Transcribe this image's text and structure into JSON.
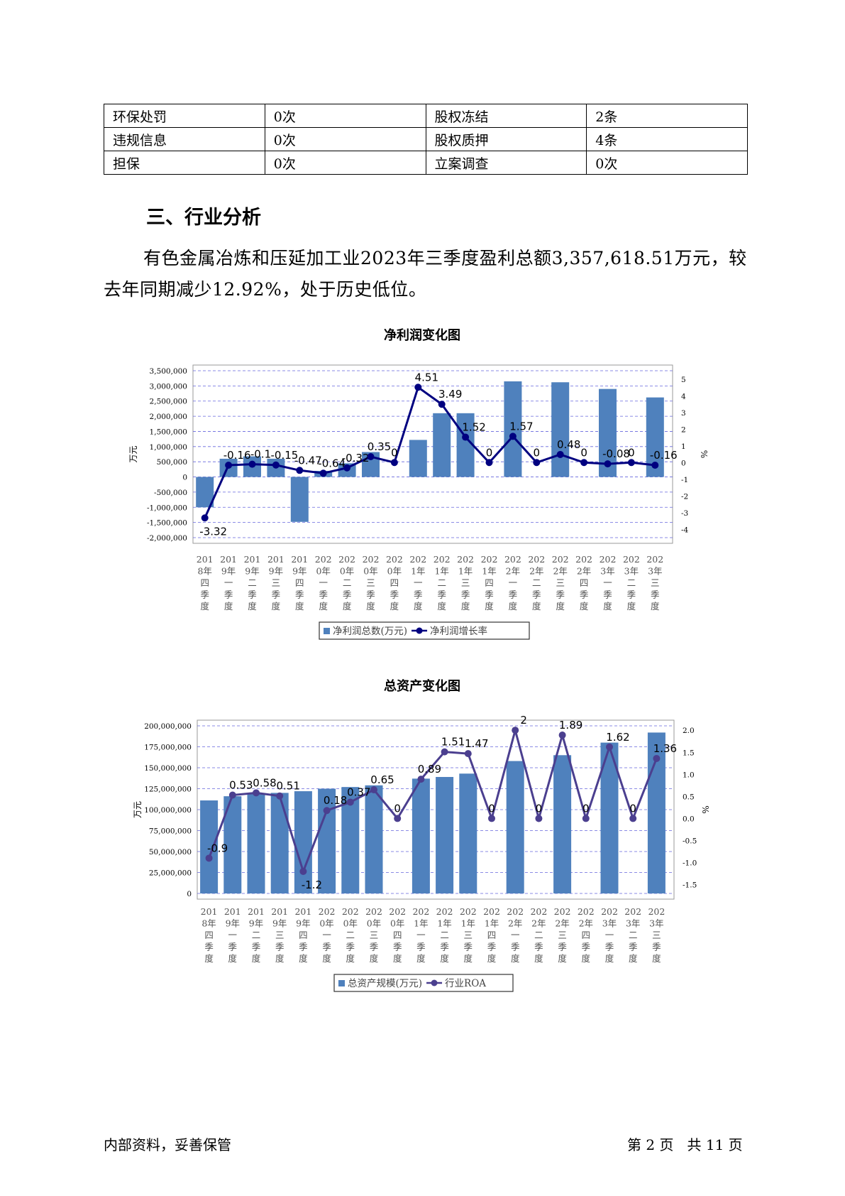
{
  "info_table": {
    "rows": [
      [
        "环保处罚",
        "0次",
        "股权冻结",
        "2条"
      ],
      [
        "违规信息",
        "0次",
        "股权质押",
        "4条"
      ],
      [
        "担保",
        "0次",
        "立案调查",
        "0次"
      ]
    ]
  },
  "section": {
    "title": "三、行业分析",
    "paragraph": "有色金属冶炼和压延加工业2023年三季度盈利总额3,357,618.51万元，较去年同期减少12.92%，处于历史低位。"
  },
  "chart_data": [
    {
      "type": "bar+line",
      "title": "净利润变化图",
      "categories": [
        "2018年四季度",
        "2019年一季度",
        "2019年二季度",
        "2019年三季度",
        "2019年四季度",
        "2020年一季度",
        "2020年二季度",
        "2020年三季度",
        "2020年四季度",
        "2021年一季度",
        "2021年二季度",
        "2021年三季度",
        "2021年四季度",
        "2022年一季度",
        "2022年二季度",
        "2022年三季度",
        "2022年四季度",
        "2023年一季度",
        "2023年二季度",
        "2023年三季度"
      ],
      "category_lines": [
        [
          "201",
          "8年",
          "四",
          "季",
          "度"
        ],
        [
          "201",
          "9年",
          "一",
          "季",
          "度"
        ],
        [
          "201",
          "9年",
          "二",
          "季",
          "度"
        ],
        [
          "201",
          "9年",
          "三",
          "季",
          "度"
        ],
        [
          "201",
          "9年",
          "四",
          "季",
          "度"
        ],
        [
          "202",
          "0年",
          "一",
          "季",
          "度"
        ],
        [
          "202",
          "0年",
          "二",
          "季",
          "度"
        ],
        [
          "202",
          "0年",
          "三",
          "季",
          "度"
        ],
        [
          "202",
          "0年",
          "四",
          "季",
          "度"
        ],
        [
          "202",
          "1年",
          "一",
          "季",
          "度"
        ],
        [
          "202",
          "1年",
          "二",
          "季",
          "度"
        ],
        [
          "202",
          "1年",
          "三",
          "季",
          "度"
        ],
        [
          "202",
          "1年",
          "四",
          "季",
          "度"
        ],
        [
          "202",
          "2年",
          "一",
          "季",
          "度"
        ],
        [
          "202",
          "2年",
          "二",
          "季",
          "度"
        ],
        [
          "202",
          "2年",
          "三",
          "季",
          "度"
        ],
        [
          "202",
          "2年",
          "四",
          "季",
          "度"
        ],
        [
          "202",
          "3年",
          "一",
          "季",
          "度"
        ],
        [
          "202",
          "3年",
          "二",
          "季",
          "度"
        ],
        [
          "202",
          "3年",
          "三",
          "季",
          "度"
        ]
      ],
      "bar_series": {
        "name": "净利润总数(万元)",
        "values": [
          -1000000,
          600000,
          680000,
          600000,
          -1480000,
          200000,
          450000,
          820000,
          0,
          1220000,
          2100000,
          2100000,
          0,
          3150000,
          0,
          3120000,
          0,
          2900000,
          0,
          2620000
        ]
      },
      "line_series": {
        "name": "净利润增长率",
        "values": [
          -3.32,
          -0.16,
          -0.1,
          -0.15,
          -0.47,
          -0.64,
          -0.32,
          0.35,
          0,
          4.51,
          3.49,
          1.52,
          0,
          1.57,
          0,
          0.48,
          0,
          -0.08,
          0,
          -0.16
        ],
        "labels": [
          "-3.32",
          "-0.16",
          "-0.1",
          "-0.15",
          "-0.47",
          "-0.64",
          "-0.32",
          "0.35",
          "0",
          "4.51",
          "3.49",
          "1.52",
          "0",
          "1.57",
          "0",
          "0.48",
          "0",
          "-0.08",
          "0",
          "-0.16"
        ]
      },
      "ylabel": "万元",
      "y2label": "%",
      "ylim": [
        -2000000,
        3500000
      ],
      "yticks": [
        -2000000,
        -1500000,
        -1000000,
        -500000,
        0,
        500000,
        1000000,
        1500000,
        2000000,
        2500000,
        3000000,
        3500000
      ],
      "ytick_labels": [
        "-2,000,000",
        "-1,500,000",
        "-1,000,000",
        "-500,000",
        "0",
        "500,000",
        "1,000,000",
        "1,500,000",
        "2,000,000",
        "2,500,000",
        "3,000,000",
        "3,500,000"
      ],
      "y2lim": [
        -4.5,
        5.5
      ],
      "y2ticks": [
        -4,
        -3,
        -2,
        -1,
        0,
        1,
        2,
        3,
        4,
        5
      ],
      "y2tick_labels": [
        "-4",
        "-3",
        "-2",
        "-1",
        "0",
        "1",
        "2",
        "3",
        "4",
        "5"
      ],
      "bar_color": "#4f81bd",
      "line_color": "#000080",
      "grid": true,
      "legend_position": "bottom"
    },
    {
      "type": "bar+line",
      "title": "总资产变化图",
      "categories": [
        "2018年四季度",
        "2019年一季度",
        "2019年二季度",
        "2019年三季度",
        "2019年四季度",
        "2020年一季度",
        "2020年二季度",
        "2020年三季度",
        "2020年四季度",
        "2021年一季度",
        "2021年二季度",
        "2021年三季度",
        "2021年四季度",
        "2022年一季度",
        "2022年二季度",
        "2022年三季度",
        "2022年四季度",
        "2023年一季度",
        "2023年二季度",
        "2023年三季度"
      ],
      "category_lines": [
        [
          "201",
          "8年",
          "四",
          "季",
          "度"
        ],
        [
          "201",
          "9年",
          "一",
          "季",
          "度"
        ],
        [
          "201",
          "9年",
          "二",
          "季",
          "度"
        ],
        [
          "201",
          "9年",
          "三",
          "季",
          "度"
        ],
        [
          "201",
          "9年",
          "四",
          "季",
          "度"
        ],
        [
          "202",
          "0年",
          "一",
          "季",
          "度"
        ],
        [
          "202",
          "0年",
          "二",
          "季",
          "度"
        ],
        [
          "202",
          "0年",
          "三",
          "季",
          "度"
        ],
        [
          "202",
          "0年",
          "四",
          "季",
          "度"
        ],
        [
          "202",
          "1年",
          "一",
          "季",
          "度"
        ],
        [
          "202",
          "1年",
          "二",
          "季",
          "度"
        ],
        [
          "202",
          "1年",
          "三",
          "季",
          "度"
        ],
        [
          "202",
          "1年",
          "四",
          "季",
          "度"
        ],
        [
          "202",
          "2年",
          "一",
          "季",
          "度"
        ],
        [
          "202",
          "2年",
          "二",
          "季",
          "度"
        ],
        [
          "202",
          "2年",
          "三",
          "季",
          "度"
        ],
        [
          "202",
          "2年",
          "四",
          "季",
          "度"
        ],
        [
          "202",
          "3年",
          "一",
          "季",
          "度"
        ],
        [
          "202",
          "3年",
          "二",
          "季",
          "度"
        ],
        [
          "202",
          "3年",
          "三",
          "季",
          "度"
        ]
      ],
      "bar_series": {
        "name": "总资产规模(万元)",
        "values": [
          111000000,
          116000000,
          119000000,
          120000000,
          122000000,
          125000000,
          127000000,
          129000000,
          0,
          137000000,
          139000000,
          143000000,
          0,
          158000000,
          0,
          165000000,
          0,
          180000000,
          0,
          192000000
        ]
      },
      "line_series": {
        "name": "行业ROA",
        "values": [
          -0.9,
          0.53,
          0.58,
          0.51,
          -1.2,
          0.18,
          0.37,
          0.65,
          0,
          0.89,
          1.51,
          1.47,
          0,
          2,
          0,
          1.89,
          0,
          1.62,
          0,
          1.36
        ],
        "labels": [
          "-0.9",
          "0.53",
          "0.58",
          "0.51",
          "-1.2",
          "0.18",
          "0.37",
          "0.65",
          "0",
          "0.89",
          "1.51",
          "1.47",
          "0",
          "2",
          "0",
          "1.89",
          "0",
          "1.62",
          "0",
          "1.36"
        ]
      },
      "ylabel": "万元",
      "y2label": "%",
      "ylim": [
        0,
        200000000
      ],
      "yticks": [
        0,
        25000000,
        50000000,
        75000000,
        100000000,
        125000000,
        150000000,
        175000000,
        200000000
      ],
      "ytick_labels": [
        "0",
        "25,000,000",
        "50,000,000",
        "75,000,000",
        "100,000,000",
        "125,000,000",
        "150,000,000",
        "175,000,000",
        "200,000,000"
      ],
      "y2lim": [
        -1.7,
        2.1
      ],
      "y2ticks": [
        -1.5,
        -1.0,
        -0.5,
        0.0,
        0.5,
        1.0,
        1.5,
        2.0
      ],
      "y2tick_labels": [
        "-1.5",
        "-1.0",
        "-0.5",
        "0.0",
        "0.5",
        "1.0",
        "1.5",
        "2.0"
      ],
      "bar_color": "#4f81bd",
      "line_color": "#4b3f8f",
      "grid": true,
      "legend_position": "bottom"
    }
  ],
  "footer": {
    "left": "内部资料，妥善保管",
    "right": "第 2 页   共 11 页"
  }
}
